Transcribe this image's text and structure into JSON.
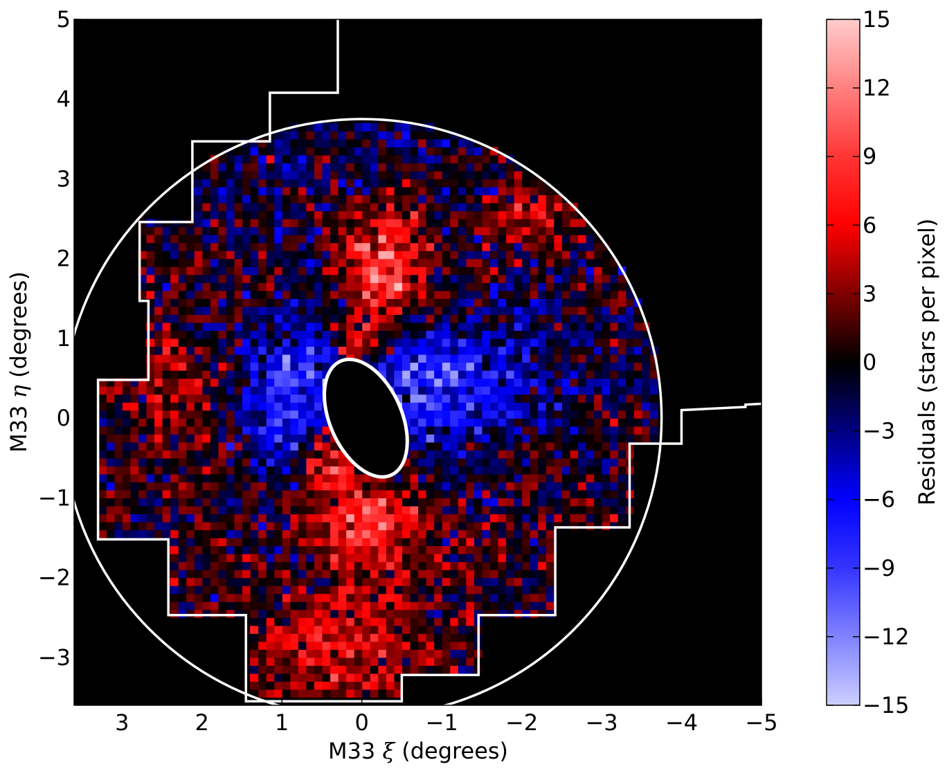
{
  "chart_data": {
    "type": "heatmap",
    "title": "",
    "xlabel": "M33 ξ (degrees)",
    "ylabel": "M33 η (degrees)",
    "xlabel_parts": {
      "prefix": "M33 ",
      "symbol": "ξ",
      "suffix": " (degrees)"
    },
    "ylabel_parts": {
      "prefix": "M33 ",
      "symbol": "η",
      "suffix": " (degrees)"
    },
    "xlim": [
      3.6,
      -5.0
    ],
    "ylim": [
      -3.6,
      5.0
    ],
    "x_ticks": [
      3,
      2,
      1,
      0,
      -1,
      -2,
      -3,
      -4,
      -5
    ],
    "x_tick_labels": [
      "3",
      "2",
      "1",
      "0",
      "−1",
      "−2",
      "−3",
      "−4",
      "−5"
    ],
    "y_ticks": [
      -3,
      -2,
      -1,
      0,
      1,
      2,
      3,
      4,
      5
    ],
    "y_tick_labels": [
      "−3",
      "−2",
      "−1",
      "0",
      "1",
      "2",
      "3",
      "4",
      "5"
    ],
    "background_color": "#000000",
    "grid": false,
    "colorbar": {
      "label": "Residuals (stars per pixel)",
      "range": [
        -15,
        15
      ],
      "ticks": [
        15,
        12,
        9,
        6,
        3,
        0,
        -3,
        -6,
        -9,
        -12,
        -15
      ],
      "tick_labels": [
        "15",
        "12",
        "9",
        "6",
        "3",
        "0",
        "−3",
        "−6",
        "−9",
        "−12",
        "−15"
      ],
      "colormap": [
        {
          "value": -15,
          "color": "#cccfff"
        },
        {
          "value": -9,
          "color": "#3535ff"
        },
        {
          "value": -6,
          "color": "#0000ff"
        },
        {
          "value": 0,
          "color": "#000000"
        },
        {
          "value": 6,
          "color": "#ff0000"
        },
        {
          "value": 9,
          "color": "#ff3535"
        },
        {
          "value": 15,
          "color": "#ffcccc"
        }
      ]
    },
    "overlays": {
      "outer_circle": {
        "center": [
          0,
          0
        ],
        "radius": 3.75,
        "color": "#ffffff"
      },
      "inner_ellipse": {
        "center": [
          -0.05,
          0
        ],
        "semi_major": 0.78,
        "semi_minor": 0.45,
        "tilt_deg": 66,
        "color": "#ffffff"
      },
      "survey_footprint": {
        "color": "#ffffff",
        "points": [
          [
            0.3,
            5.0
          ],
          [
            0.3,
            4.08
          ],
          [
            1.15,
            4.08
          ],
          [
            1.15,
            3.47
          ],
          [
            2.12,
            3.47
          ],
          [
            2.12,
            2.46
          ],
          [
            2.78,
            2.46
          ],
          [
            2.78,
            1.47
          ],
          [
            2.67,
            1.47
          ],
          [
            2.67,
            0.48
          ],
          [
            3.3,
            0.48
          ],
          [
            3.3,
            -1.52
          ],
          [
            2.42,
            -1.52
          ],
          [
            2.42,
            -2.47
          ],
          [
            1.45,
            -2.47
          ],
          [
            1.45,
            -3.55
          ],
          [
            -0.5,
            -3.55
          ],
          [
            -0.5,
            -3.22
          ],
          [
            -1.46,
            -3.22
          ],
          [
            -1.46,
            -2.47
          ],
          [
            -2.42,
            -2.47
          ],
          [
            -2.42,
            -1.37
          ],
          [
            -3.35,
            -1.37
          ],
          [
            -3.35,
            -0.32
          ],
          [
            -4.0,
            -0.32
          ],
          [
            -4.0,
            0.1
          ],
          [
            -4.8,
            0.14
          ],
          [
            -4.8,
            0.17
          ],
          [
            -5.0,
            0.18
          ]
        ]
      }
    },
    "residual_pixels": {
      "pixel_size_deg": 0.1,
      "mask_radius_deg": 3.75,
      "background_noise": {
        "mean": 0.5,
        "amplitude": 4.2,
        "seed": 12345
      },
      "features": [
        {
          "description_for_script": "positive",
          "x": -0.3,
          "y": 1.9,
          "sx": 0.35,
          "sy": 0.55,
          "amp": 10
        },
        {
          "description_for_script": "positive",
          "x": 0.1,
          "y": 0.9,
          "sx": 0.2,
          "sy": 0.3,
          "amp": 9
        },
        {
          "description_for_script": "positive",
          "x": 0.4,
          "y": -0.45,
          "sx": 0.22,
          "sy": 0.3,
          "amp": 12
        },
        {
          "description_for_script": "positive",
          "x": -0.1,
          "y": -1.35,
          "sx": 0.45,
          "sy": 0.4,
          "amp": 9
        },
        {
          "description_for_script": "positive",
          "x": 0.3,
          "y": -2.8,
          "sx": 0.7,
          "sy": 0.5,
          "amp": 5
        },
        {
          "description_for_script": "positive",
          "x": -2.2,
          "y": 2.6,
          "sx": 0.35,
          "sy": 0.35,
          "amp": 5
        },
        {
          "description_for_script": "positive",
          "x": 2.2,
          "y": 0.4,
          "sx": 0.5,
          "sy": 0.6,
          "amp": 3
        },
        {
          "description_for_script": "negative",
          "x": 0.75,
          "y": 0.3,
          "sx": 0.6,
          "sy": 0.7,
          "amp": -9
        },
        {
          "description_for_script": "negative",
          "x": -0.85,
          "y": 0.35,
          "sx": 0.7,
          "sy": 0.55,
          "amp": -8
        },
        {
          "description_for_script": "negative",
          "x": 0.3,
          "y": 3.2,
          "sx": 1.2,
          "sy": 0.6,
          "amp": -2.5
        },
        {
          "description_for_script": "negative",
          "x": -2.0,
          "y": 0.6,
          "sx": 0.9,
          "sy": 0.7,
          "amp": -2.5
        }
      ]
    }
  }
}
